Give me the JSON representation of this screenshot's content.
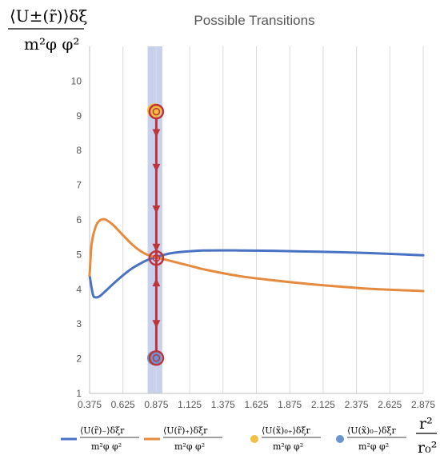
{
  "chart_data": {
    "type": "line",
    "title": "Possible Transitions",
    "ylabel_num": "⟨U±(r̃)⟩δξ",
    "ylabel_den": "m²φ φ²",
    "xlabel_num": "r²",
    "xlabel_den": "r₀²",
    "xlim": [
      0.375,
      2.875
    ],
    "ylim": [
      1,
      11
    ],
    "x_ticks": [
      "0.375",
      "0.625",
      "0.875",
      "1.125",
      "1.375",
      "1.625",
      "1.875",
      "2.125",
      "2.375",
      "2.625",
      "2.875"
    ],
    "y_ticks": [
      "1",
      "2",
      "3",
      "4",
      "5",
      "6",
      "7",
      "8",
      "9",
      "10"
    ],
    "grid": "vertical",
    "band": {
      "x_from": 0.81,
      "x_to": 0.92,
      "color": "#b4c2e6"
    },
    "series": [
      {
        "name": "⟨U(r̃)₋⟩δξ / m²φ φ²",
        "legend_num": "⟨U(r̃)₋⟩δξr",
        "legend_den": "m²φ φ²",
        "color": "#4a72c4",
        "x": [
          0.375,
          0.4,
          0.42,
          0.45,
          0.5,
          0.55,
          0.6,
          0.65,
          0.7,
          0.75,
          0.8,
          0.85,
          0.875,
          0.9,
          0.95,
          1.0,
          1.1,
          1.25,
          1.5,
          1.75,
          2.0,
          2.25,
          2.5,
          2.875
        ],
        "y": [
          4.4,
          3.85,
          3.77,
          3.8,
          3.97,
          4.15,
          4.32,
          4.48,
          4.62,
          4.73,
          4.83,
          4.9,
          4.93,
          4.96,
          5.01,
          5.05,
          5.09,
          5.12,
          5.12,
          5.11,
          5.09,
          5.07,
          5.04,
          4.98
        ]
      },
      {
        "name": "⟨U(r̃)₊⟩δξ / m²φ φ²",
        "legend_num": "⟨U(r̃)₊⟩δξr",
        "legend_den": "m²φ φ²",
        "color": "#e68a3e",
        "x": [
          0.375,
          0.39,
          0.42,
          0.45,
          0.48,
          0.5,
          0.55,
          0.6,
          0.65,
          0.7,
          0.75,
          0.8,
          0.875,
          0.95,
          1.0,
          1.125,
          1.25,
          1.5,
          1.75,
          2.0,
          2.25,
          2.5,
          2.875
        ],
        "y": [
          4.4,
          5.3,
          5.8,
          5.98,
          6.02,
          6.0,
          5.86,
          5.66,
          5.46,
          5.27,
          5.12,
          5.01,
          4.92,
          4.85,
          4.8,
          4.68,
          4.56,
          4.38,
          4.26,
          4.16,
          4.08,
          4.01,
          3.95
        ]
      }
    ],
    "points": [
      {
        "name": "⟨U(x̃)₀₊⟩δξ / m²φ φ²",
        "legend_num": "⟨U(x̃)₀₊⟩δξr",
        "legend_den": "m²φ φ²",
        "color": "#f0c040",
        "x": 0.86,
        "y": 9.15
      },
      {
        "name": "⟨U(x̃)₀₋⟩δξ / m²φ φ²",
        "legend_num": "⟨U(x̃)₀₋⟩δξr",
        "legend_den": "m²φ φ²",
        "color": "#6b95cf",
        "x": 0.86,
        "y": 2.02
      }
    ],
    "transitions": {
      "color": "#c0323c",
      "x": 0.875,
      "circles": [
        9.12,
        4.9,
        2.02
      ],
      "path": [
        9.12,
        4.9,
        2.02
      ],
      "arrows_down": [
        8.5,
        7.5,
        6.3,
        5.2
      ],
      "arrows_up": [
        4.2
      ],
      "arrows_down_lower": [
        3.0
      ]
    }
  }
}
